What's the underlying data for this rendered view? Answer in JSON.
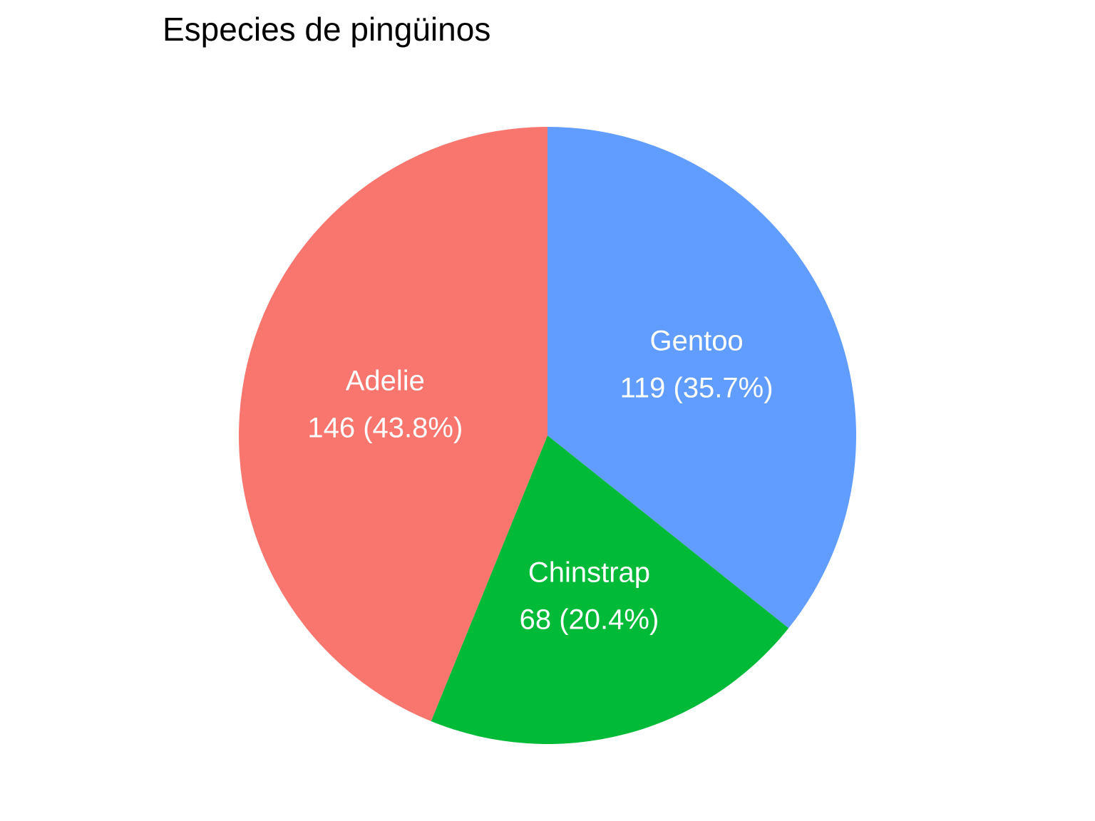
{
  "chart_data": {
    "type": "pie",
    "title": "Especies de pingüinos",
    "start": "12 o'clock",
    "direction": "clockwise",
    "slices": [
      {
        "name": "Gentoo",
        "value": 119,
        "label": "119 (35.7%)",
        "color": "#619CFF"
      },
      {
        "name": "Chinstrap",
        "value": 68,
        "label": "68 (20.4%)",
        "color": "#00BA38"
      },
      {
        "name": "Adelie",
        "value": 146,
        "label": "146 (43.8%)",
        "color": "#F8766D"
      }
    ]
  }
}
